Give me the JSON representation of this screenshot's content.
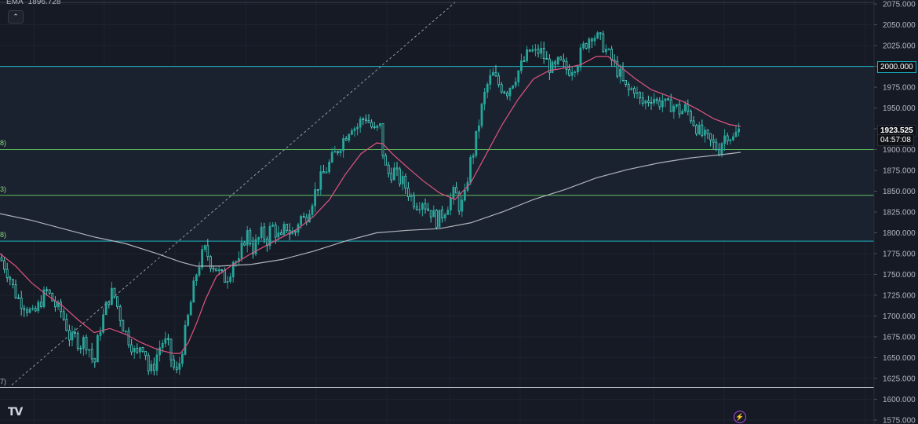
{
  "indicator": {
    "name": "EMA",
    "value": "1896.728"
  },
  "collapse_icon": "chevron-up-icon",
  "logo_text": "TV",
  "bolt_icon": "lightning-icon",
  "fragments": [
    "8)",
    "3)",
    "8)",
    "7)"
  ],
  "price_tag": "1923.525",
  "countdown": "04:57:08",
  "level_tag": "2000.000",
  "colors": {
    "background": "#161a25",
    "up_candle": "#26a69a",
    "ema_fast": "#e0547e",
    "ema_slow": "#b0b3ba",
    "level_cyan": "#1fb2c1",
    "level_green": "#5ebf5a"
  },
  "chart_data": {
    "type": "candlestick",
    "y_axis_ticks": [
      "2075.000",
      "2050.000",
      "2025.000",
      "2000.000",
      "1975.000",
      "1950.000",
      "1925.000",
      "1900.000",
      "1875.000",
      "1850.000",
      "1825.000",
      "1800.000",
      "1775.000",
      "1750.000",
      "1725.000",
      "1700.000",
      "1675.000",
      "1650.000",
      "1625.000",
      "1600.000",
      "1575.000"
    ],
    "ylim": [
      1573,
      2077
    ],
    "horizontal_levels": [
      {
        "price": 2000,
        "color": "#1fb2c1"
      },
      {
        "price": 1900,
        "color": "#5ebf5a"
      },
      {
        "price": 1845,
        "color": "#5ebf5a"
      },
      {
        "price": 1790,
        "color": "#1fb2c1"
      },
      {
        "price": 1614,
        "color": "#b2b5be"
      }
    ],
    "close_path": [
      [
        0,
        1770
      ],
      [
        6,
        1760
      ],
      [
        12,
        1748
      ],
      [
        18,
        1730
      ],
      [
        24,
        1720
      ],
      [
        30,
        1715
      ],
      [
        36,
        1708
      ],
      [
        42,
        1700
      ],
      [
        48,
        1710
      ],
      [
        54,
        1722
      ],
      [
        60,
        1730
      ],
      [
        66,
        1720
      ],
      [
        72,
        1710
      ],
      [
        78,
        1705
      ],
      [
        84,
        1690
      ],
      [
        90,
        1670
      ],
      [
        96,
        1675
      ],
      [
        102,
        1665
      ],
      [
        108,
        1672
      ],
      [
        114,
        1660
      ],
      [
        120,
        1640
      ],
      [
        126,
        1680
      ],
      [
        132,
        1700
      ],
      [
        138,
        1720
      ],
      [
        144,
        1730
      ],
      [
        150,
        1710
      ],
      [
        156,
        1690
      ],
      [
        162,
        1676
      ],
      [
        168,
        1665
      ],
      [
        174,
        1650
      ],
      [
        180,
        1670
      ],
      [
        186,
        1655
      ],
      [
        190,
        1630
      ],
      [
        196,
        1640
      ],
      [
        202,
        1660
      ],
      [
        208,
        1670
      ],
      [
        214,
        1665
      ],
      [
        220,
        1640
      ],
      [
        226,
        1630
      ],
      [
        232,
        1660
      ],
      [
        238,
        1690
      ],
      [
        244,
        1720
      ],
      [
        250,
        1750
      ],
      [
        256,
        1770
      ],
      [
        262,
        1780
      ],
      [
        268,
        1765
      ],
      [
        274,
        1760
      ],
      [
        280,
        1750
      ],
      [
        286,
        1745
      ],
      [
        292,
        1750
      ],
      [
        298,
        1770
      ],
      [
        304,
        1760
      ],
      [
        310,
        1790
      ],
      [
        316,
        1800
      ],
      [
        322,
        1780
      ],
      [
        328,
        1790
      ],
      [
        334,
        1800
      ],
      [
        340,
        1790
      ],
      [
        346,
        1810
      ],
      [
        352,
        1800
      ],
      [
        358,
        1790
      ],
      [
        364,
        1810
      ],
      [
        370,
        1800
      ],
      [
        376,
        1800
      ],
      [
        382,
        1820
      ],
      [
        388,
        1815
      ],
      [
        394,
        1830
      ],
      [
        400,
        1845
      ],
      [
        406,
        1860
      ],
      [
        412,
        1870
      ],
      [
        418,
        1880
      ],
      [
        424,
        1890
      ],
      [
        430,
        1900
      ],
      [
        436,
        1910
      ],
      [
        442,
        1920
      ],
      [
        448,
        1930
      ],
      [
        454,
        1925
      ],
      [
        460,
        1935
      ],
      [
        466,
        1940
      ],
      [
        472,
        1930
      ],
      [
        478,
        1920
      ],
      [
        484,
        1930
      ],
      [
        490,
        1880
      ],
      [
        496,
        1870
      ],
      [
        502,
        1875
      ],
      [
        508,
        1865
      ],
      [
        514,
        1860
      ],
      [
        520,
        1850
      ],
      [
        526,
        1840
      ],
      [
        532,
        1835
      ],
      [
        538,
        1840
      ],
      [
        544,
        1830
      ],
      [
        550,
        1825
      ],
      [
        556,
        1815
      ],
      [
        562,
        1820
      ],
      [
        568,
        1830
      ],
      [
        574,
        1840
      ],
      [
        580,
        1850
      ],
      [
        586,
        1830
      ],
      [
        592,
        1840
      ],
      [
        598,
        1880
      ],
      [
        604,
        1900
      ],
      [
        610,
        1930
      ],
      [
        616,
        1960
      ],
      [
        622,
        1980
      ],
      [
        628,
        1990
      ],
      [
        634,
        1980
      ],
      [
        640,
        1975
      ],
      [
        646,
        1970
      ],
      [
        652,
        1980
      ],
      [
        658,
        1990
      ],
      [
        664,
        2000
      ],
      [
        670,
        2010
      ],
      [
        676,
        2020
      ],
      [
        682,
        2015
      ],
      [
        688,
        2020
      ],
      [
        694,
        2010
      ],
      [
        700,
        2000
      ],
      [
        706,
        1995
      ],
      [
        712,
        2005
      ],
      [
        718,
        2000
      ],
      [
        724,
        1995
      ],
      [
        730,
        2000
      ],
      [
        736,
        2005
      ],
      [
        742,
        2020
      ],
      [
        748,
        2030
      ],
      [
        754,
        2040
      ],
      [
        760,
        2035
      ],
      [
        766,
        2030
      ],
      [
        772,
        2020
      ],
      [
        778,
        2010
      ],
      [
        784,
        2000
      ],
      [
        790,
        1990
      ],
      [
        796,
        1975
      ],
      [
        802,
        1970
      ],
      [
        808,
        1975
      ],
      [
        814,
        1960
      ],
      [
        820,
        1955
      ],
      [
        826,
        1960
      ],
      [
        832,
        1965
      ],
      [
        838,
        1955
      ],
      [
        844,
        1960
      ],
      [
        850,
        1950
      ],
      [
        856,
        1955
      ],
      [
        862,
        1950
      ],
      [
        868,
        1945
      ],
      [
        874,
        1950
      ],
      [
        880,
        1940
      ],
      [
        886,
        1930
      ],
      [
        892,
        1920
      ],
      [
        898,
        1915
      ],
      [
        904,
        1910
      ],
      [
        910,
        1905
      ],
      [
        916,
        1900
      ],
      [
        922,
        1915
      ],
      [
        928,
        1920
      ],
      [
        934,
        1912
      ],
      [
        940,
        1922
      ],
      [
        944,
        1923.5
      ]
    ],
    "ema_fast_path": [
      [
        0,
        1775
      ],
      [
        20,
        1760
      ],
      [
        40,
        1740
      ],
      [
        60,
        1725
      ],
      [
        80,
        1712
      ],
      [
        100,
        1695
      ],
      [
        120,
        1680
      ],
      [
        140,
        1685
      ],
      [
        160,
        1678
      ],
      [
        180,
        1668
      ],
      [
        200,
        1660
      ],
      [
        220,
        1655
      ],
      [
        230,
        1655
      ],
      [
        240,
        1668
      ],
      [
        250,
        1690
      ],
      [
        262,
        1720
      ],
      [
        276,
        1748
      ],
      [
        294,
        1760
      ],
      [
        320,
        1775
      ],
      [
        350,
        1790
      ],
      [
        380,
        1805
      ],
      [
        400,
        1820
      ],
      [
        420,
        1840
      ],
      [
        440,
        1870
      ],
      [
        460,
        1895
      ],
      [
        480,
        1908
      ],
      [
        488,
        1907
      ],
      [
        500,
        1895
      ],
      [
        520,
        1878
      ],
      [
        540,
        1862
      ],
      [
        560,
        1848
      ],
      [
        580,
        1840
      ],
      [
        600,
        1860
      ],
      [
        620,
        1895
      ],
      [
        640,
        1930
      ],
      [
        660,
        1960
      ],
      [
        680,
        1985
      ],
      [
        700,
        1995
      ],
      [
        720,
        1998
      ],
      [
        740,
        2002
      ],
      [
        760,
        2012
      ],
      [
        775,
        2012
      ],
      [
        790,
        2000
      ],
      [
        810,
        1985
      ],
      [
        830,
        1972
      ],
      [
        850,
        1965
      ],
      [
        870,
        1958
      ],
      [
        890,
        1948
      ],
      [
        910,
        1937
      ],
      [
        930,
        1930
      ],
      [
        944,
        1928
      ]
    ],
    "ema_slow_path": [
      [
        0,
        1823
      ],
      [
        40,
        1815
      ],
      [
        80,
        1805
      ],
      [
        120,
        1795
      ],
      [
        160,
        1787
      ],
      [
        200,
        1775
      ],
      [
        230,
        1765
      ],
      [
        250,
        1760
      ],
      [
        280,
        1760
      ],
      [
        320,
        1762
      ],
      [
        360,
        1768
      ],
      [
        400,
        1778
      ],
      [
        440,
        1790
      ],
      [
        480,
        1800
      ],
      [
        520,
        1803
      ],
      [
        560,
        1805
      ],
      [
        600,
        1812
      ],
      [
        640,
        1825
      ],
      [
        680,
        1840
      ],
      [
        720,
        1852
      ],
      [
        760,
        1866
      ],
      [
        800,
        1876
      ],
      [
        840,
        1884
      ],
      [
        880,
        1890
      ],
      [
        920,
        1894
      ],
      [
        944,
        1896.7
      ]
    ],
    "trendline": {
      "from": [
        15,
        1617
      ],
      "to": [
        580,
        2077
      ]
    }
  }
}
